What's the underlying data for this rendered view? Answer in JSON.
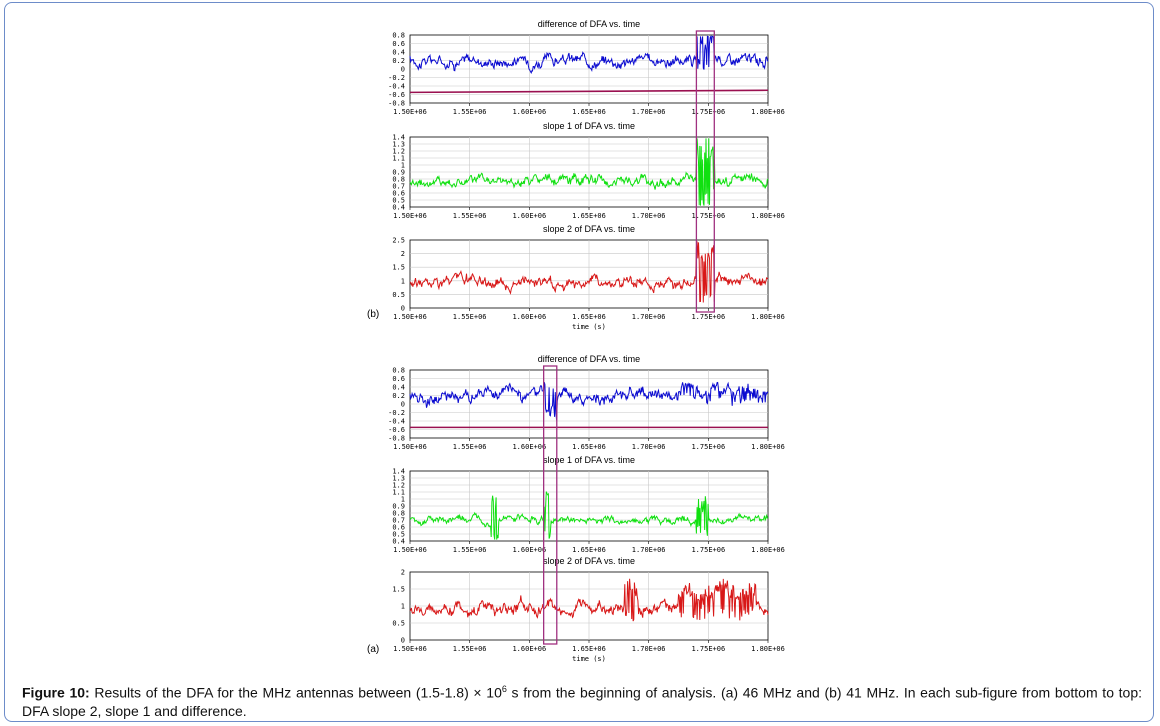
{
  "caption": {
    "label": "Figure 10:",
    "text_before_sup": " Results of the DFA for the MHz antennas between (1.5-1.8) × 10",
    "sup": "6",
    "text_after_sup": " s from the beginning of analysis. (a) 46 MHz and (b) 41 MHz. In each sub-figure from bottom to top: DFA slope 2, slope 1 and difference."
  },
  "colors": {
    "difference": "#0a0ad0",
    "slope1": "#10e010",
    "slope2": "#d81818",
    "threshold": "#9a1050",
    "highlight": "#a03080",
    "grid": "#c8c8c8"
  },
  "chart_data": [
    {
      "panel": "(b)",
      "title": "difference of DFA vs. time",
      "type": "line",
      "series_color": "#0a0ad0",
      "ylim": [
        -0.8,
        0.8
      ],
      "yticks": [
        "0.8",
        "0.6",
        "0.4",
        "0.2",
        "0",
        "-0.2",
        "-0.4",
        "-0.6",
        "-0.8"
      ],
      "xlim": [
        1500000,
        1800000
      ],
      "xticks": [
        "1.50E+06",
        "1.55E+06",
        "1.60E+06",
        "1.65E+06",
        "1.70E+06",
        "1.75E+06",
        "1.80E+06"
      ],
      "xlabel": "",
      "base": 0.2,
      "noise": 0.13,
      "threshold_line": [
        -0.55,
        -0.5
      ],
      "highlight_x": [
        1740000,
        1755000
      ],
      "spikes": [
        {
          "x0": 1740000,
          "x1": 1755000,
          "amp": 0.45
        }
      ]
    },
    {
      "panel": "(b)",
      "title": "slope 1 of DFA vs. time",
      "type": "line",
      "series_color": "#10e010",
      "ylim": [
        0.4,
        1.4
      ],
      "yticks": [
        "1.4",
        "1.3",
        "1.2",
        "1.1",
        "1",
        "0.9",
        "0.8",
        "0.7",
        "0.6",
        "0.5",
        "0.4"
      ],
      "xlim": [
        1500000,
        1800000
      ],
      "xticks": [
        "1.50E+06",
        "1.55E+06",
        "1.60E+06",
        "1.65E+06",
        "1.70E+06",
        "1.75E+06",
        "1.80E+06"
      ],
      "xlabel": "",
      "base": 0.77,
      "noise": 0.07,
      "highlight_x": [
        1740000,
        1755000
      ],
      "spikes": [
        {
          "x0": 1740000,
          "x1": 1755000,
          "amp": 0.55
        }
      ]
    },
    {
      "panel": "(b)",
      "title": "slope 2 of DFA vs. time",
      "type": "line",
      "series_color": "#d81818",
      "ylim": [
        0,
        2.5
      ],
      "yticks": [
        "2.5",
        "2",
        "1.5",
        "1",
        "0.5",
        "0"
      ],
      "xlim": [
        1500000,
        1800000
      ],
      "xticks": [
        "1.50E+06",
        "1.55E+06",
        "1.60E+06",
        "1.65E+06",
        "1.70E+06",
        "1.75E+06",
        "1.80E+06"
      ],
      "xlabel": "time (s)",
      "base": 0.95,
      "noise": 0.2,
      "highlight_x": [
        1740000,
        1755000
      ],
      "spikes": [
        {
          "x0": 1740000,
          "x1": 1755000,
          "amp": 1.1
        }
      ]
    },
    {
      "panel": "(a)",
      "title": "difference of DFA vs. time",
      "type": "line",
      "series_color": "#0a0ad0",
      "ylim": [
        -0.8,
        0.8
      ],
      "yticks": [
        "0.8",
        "0.6",
        "0.4",
        "0.2",
        "0",
        "-0.2",
        "-0.4",
        "-0.6",
        "-0.8"
      ],
      "xlim": [
        1500000,
        1800000
      ],
      "xticks": [
        "1.50E+06",
        "1.55E+06",
        "1.60E+06",
        "1.65E+06",
        "1.70E+06",
        "1.75E+06",
        "1.80E+06"
      ],
      "xlabel": "",
      "base": 0.2,
      "noise": 0.14,
      "threshold_line": [
        -0.55,
        -0.55
      ],
      "highlight_x": [
        1612000,
        1623000
      ],
      "spikes": [
        {
          "x0": 1612000,
          "x1": 1623000,
          "amp": -0.35
        },
        {
          "x0": 1725000,
          "x1": 1800000,
          "amp": 0.15
        }
      ]
    },
    {
      "panel": "(a)",
      "title": "slope 1 of DFA vs. time",
      "type": "line",
      "series_color": "#10e010",
      "ylim": [
        0.4,
        1.4
      ],
      "yticks": [
        "1.4",
        "1.3",
        "1.2",
        "1.1",
        "1",
        "0.9",
        "0.8",
        "0.7",
        "0.6",
        "0.5",
        "0.4"
      ],
      "xlim": [
        1500000,
        1800000
      ],
      "xticks": [
        "1.50E+06",
        "1.55E+06",
        "1.60E+06",
        "1.65E+06",
        "1.70E+06",
        "1.75E+06",
        "1.80E+06"
      ],
      "xlabel": "",
      "base": 0.7,
      "noise": 0.05,
      "highlight_x": [
        1612000,
        1623000
      ],
      "spikes": [
        {
          "x0": 1568000,
          "x1": 1574000,
          "amp": 0.4
        },
        {
          "x0": 1612000,
          "x1": 1618000,
          "amp": 0.35
        },
        {
          "x0": 1740000,
          "x1": 1750000,
          "amp": 0.25
        }
      ]
    },
    {
      "panel": "(a)",
      "title": "slope 2 of DFA vs. time",
      "type": "line",
      "series_color": "#d81818",
      "ylim": [
        0,
        2
      ],
      "yticks": [
        "2",
        "1.5",
        "1",
        "0.5",
        "0"
      ],
      "xlim": [
        1500000,
        1800000
      ],
      "xticks": [
        "1.50E+06",
        "1.55E+06",
        "1.60E+06",
        "1.65E+06",
        "1.70E+06",
        "1.75E+06",
        "1.80E+06"
      ],
      "xlabel": "time (s)",
      "base": 0.95,
      "noise": 0.18,
      "highlight_x": [
        1612000,
        1623000
      ],
      "spikes": [
        {
          "x0": 1680000,
          "x1": 1692000,
          "amp": 0.6
        },
        {
          "x0": 1725000,
          "x1": 1790000,
          "amp": 0.45
        }
      ]
    }
  ]
}
